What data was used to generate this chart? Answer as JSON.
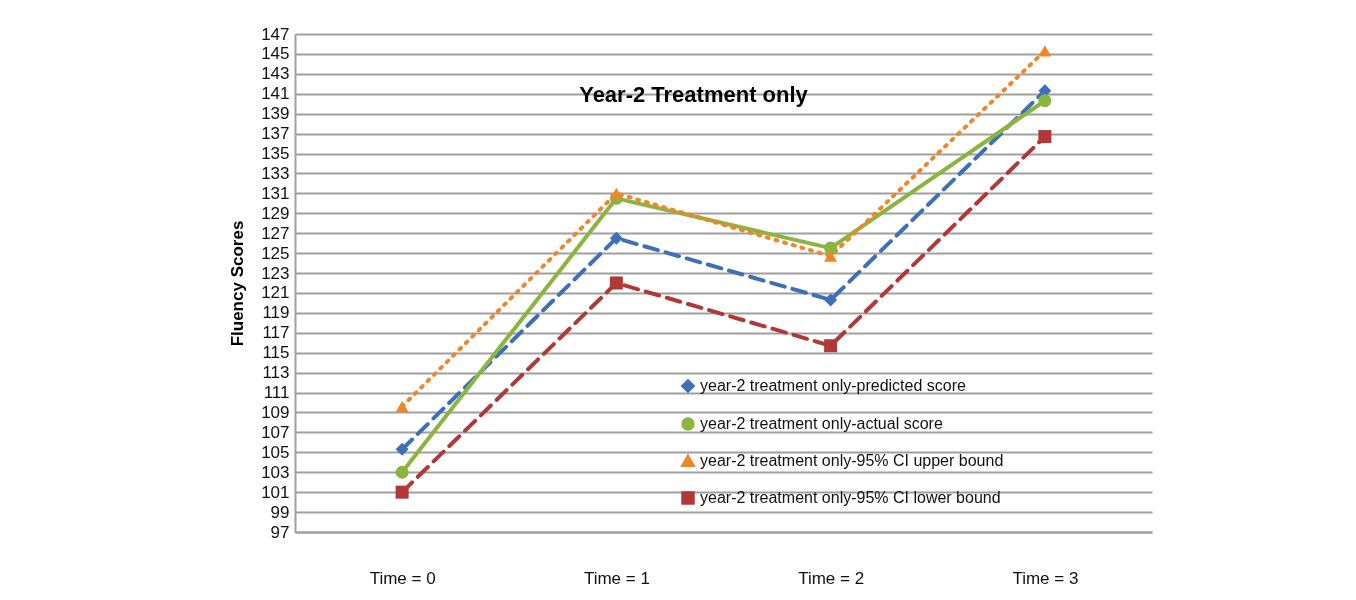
{
  "chart_data": {
    "type": "line",
    "title": "Year-2 Treatment only",
    "ylabel": "Fluency Scores",
    "categories": [
      "Time = 0",
      "Time = 1",
      "Time = 2",
      "Time = 3"
    ],
    "series": [
      {
        "name": "year-2 treatment only-predicted score",
        "color": "#3e70b8",
        "values": [
          105.3,
          126.5,
          120.3,
          141.3
        ],
        "marker": "diamond",
        "line_style": "dashed"
      },
      {
        "name": "year-2 treatment only-actual score",
        "color": "#8cb53f",
        "values": [
          103.0,
          130.5,
          125.5,
          140.3
        ],
        "marker": "circle",
        "line_style": "solid"
      },
      {
        "name": "year-2 treatment only-95% CI upper bound",
        "color": "#f0862a",
        "values": [
          109.6,
          131.0,
          124.7,
          145.3
        ],
        "marker": "triangle",
        "line_style": "dotted"
      },
      {
        "name": "year-2 treatment only-95% CI lower bound",
        "color": "#b23838",
        "values": [
          101.0,
          122.0,
          115.7,
          136.7
        ],
        "marker": "square",
        "line_style": "dashed"
      }
    ],
    "ylim": [
      97,
      147
    ],
    "yticks": [
      97,
      99,
      101,
      103,
      105,
      107,
      109,
      111,
      113,
      115,
      117,
      119,
      121,
      123,
      125,
      127,
      129,
      131,
      133,
      135,
      137,
      139,
      141,
      143,
      145,
      147
    ],
    "grid": "y",
    "legend": "bottom right"
  }
}
